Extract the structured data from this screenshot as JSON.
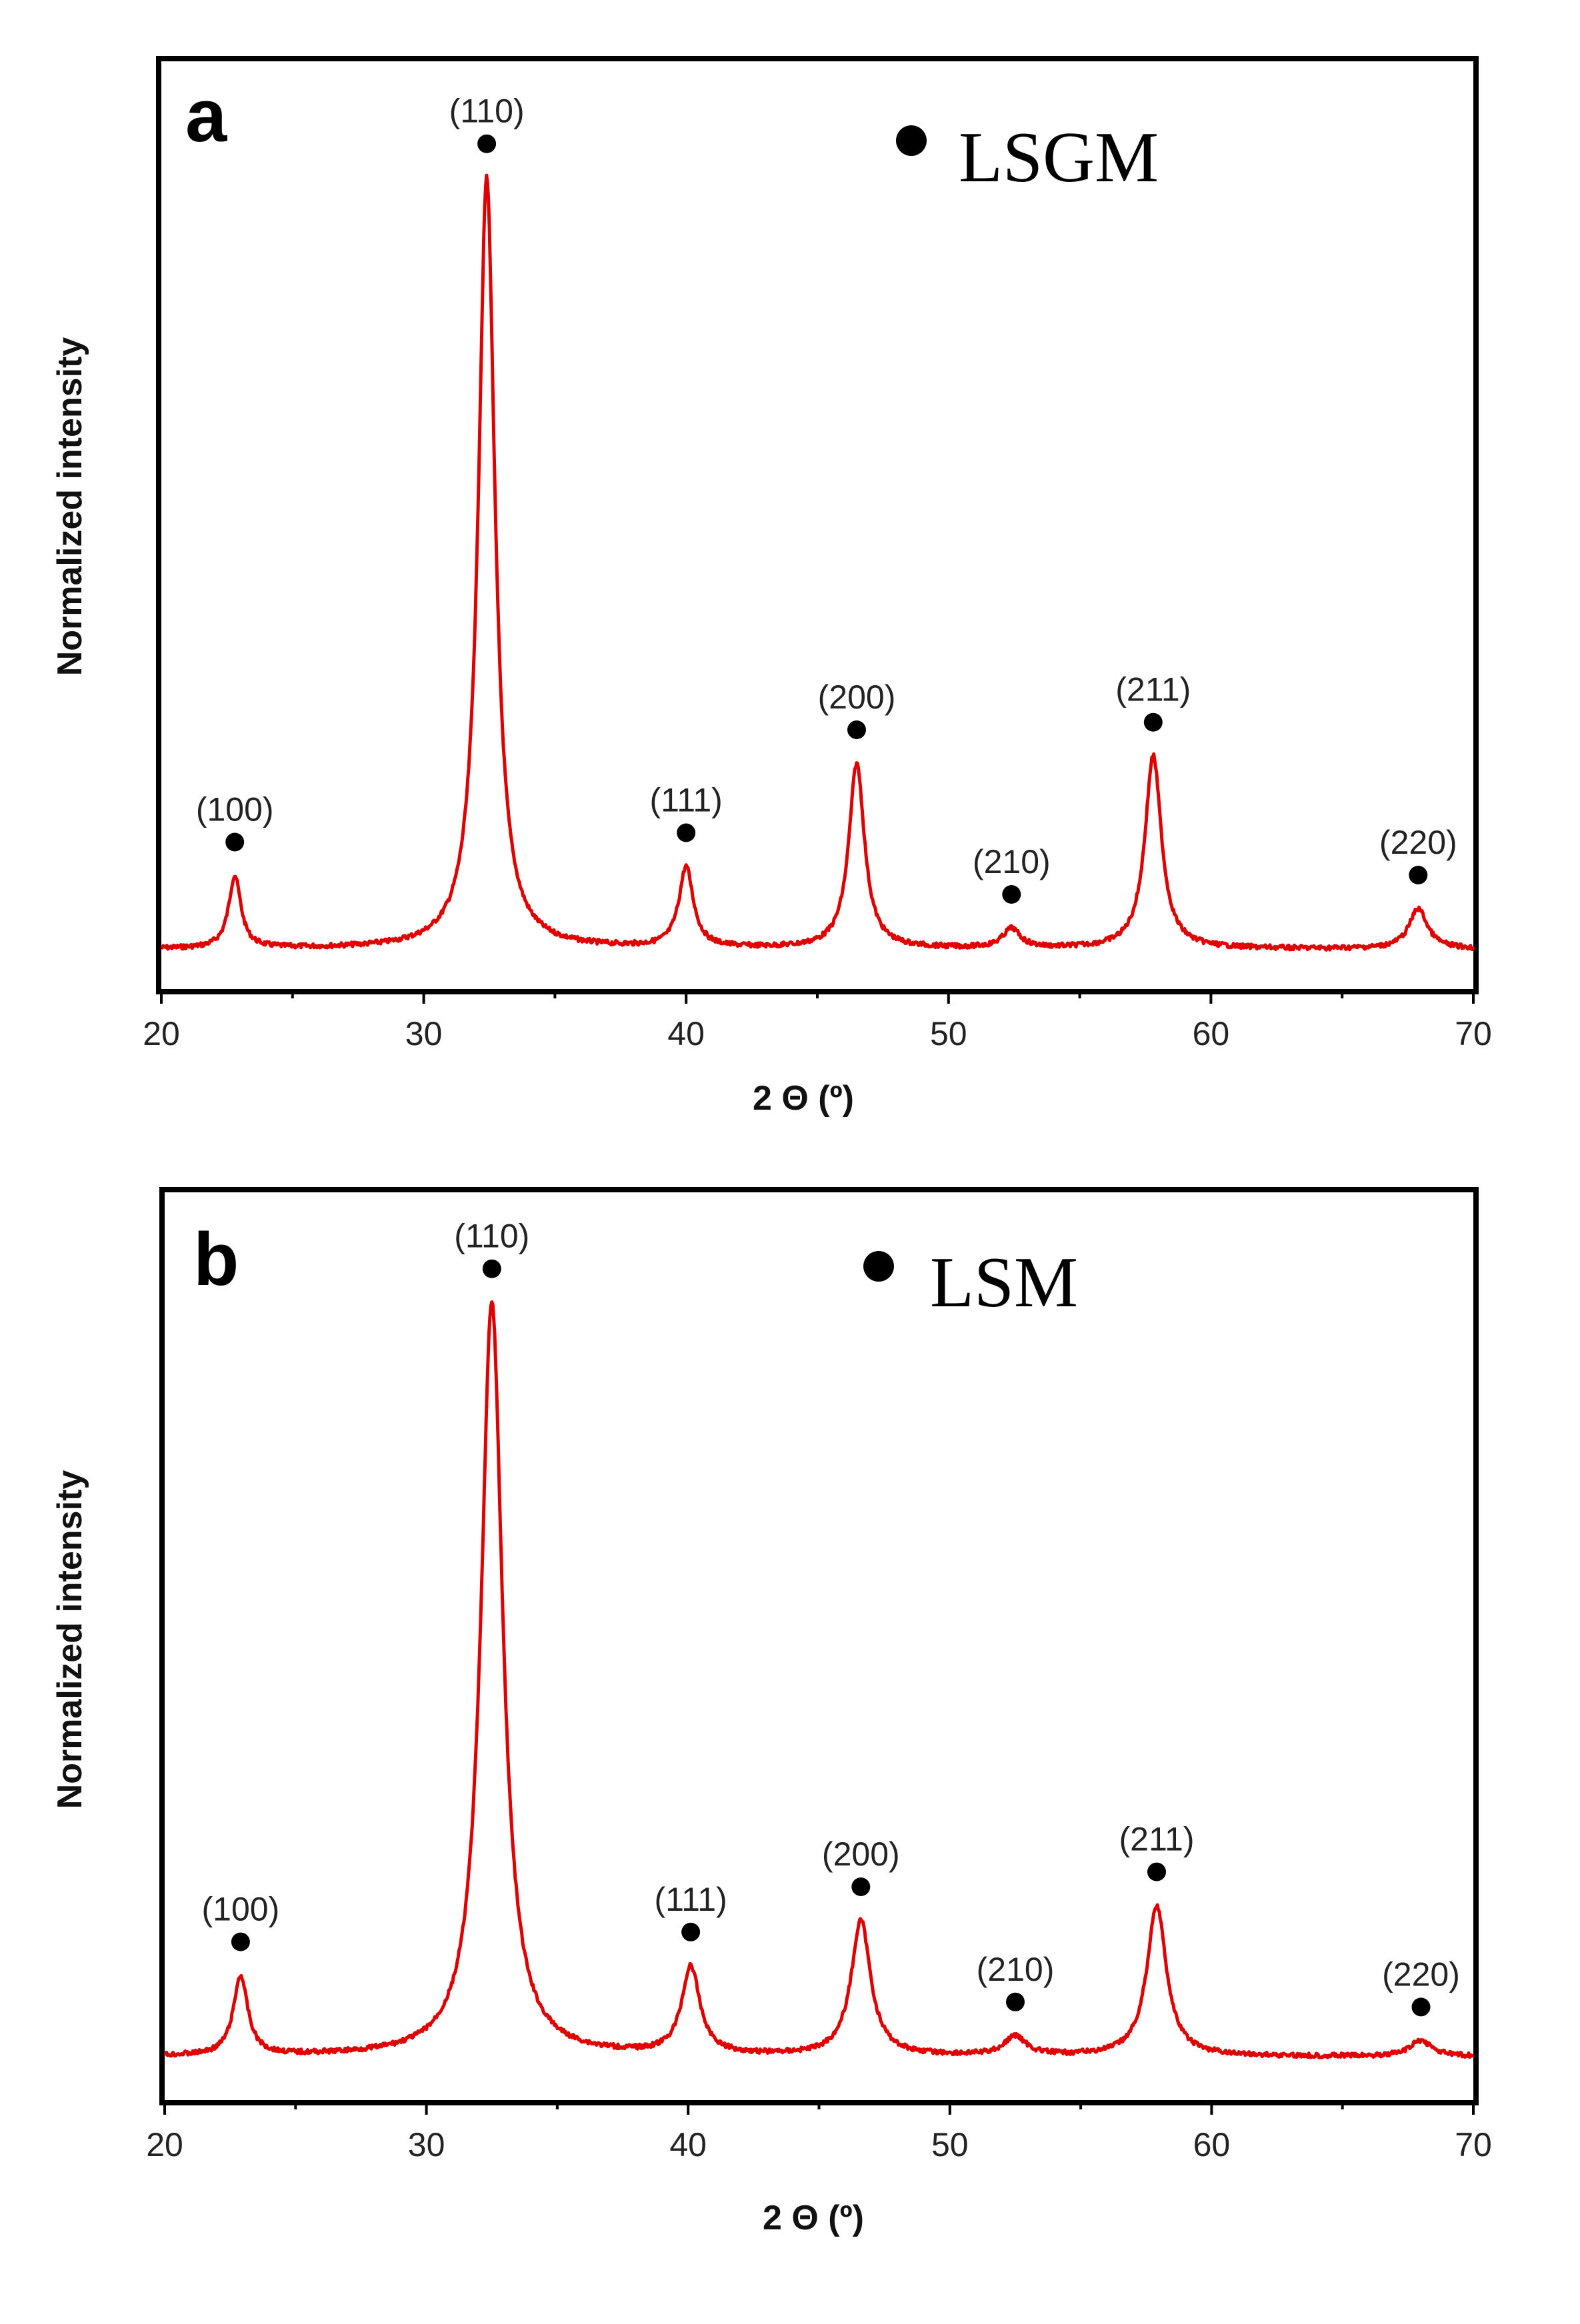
{
  "colors": {
    "line": "#e00000",
    "marker": "#000000",
    "frame": "#000000"
  },
  "chart_data": [
    {
      "type": "line",
      "panel_label": "a",
      "legend": "LSGM",
      "xlabel": "2 Θ (º)",
      "ylabel": "Normalized intensity",
      "xlim": [
        20,
        70
      ],
      "ylim": [
        0,
        1.05
      ],
      "xticks": [
        "20",
        "30",
        "40",
        "50",
        "60",
        "70"
      ],
      "baseline": 0.04,
      "peaks": [
        {
          "label": "(100)",
          "x": 22.8,
          "y": 0.13,
          "w": 0.28
        },
        {
          "label": "(110)",
          "x": 32.4,
          "y": 1.0,
          "w": 0.38
        },
        {
          "label": "(111)",
          "x": 40.0,
          "y": 0.14,
          "w": 0.33
        },
        {
          "label": "(200)",
          "x": 46.5,
          "y": 0.27,
          "w": 0.36
        },
        {
          "label": "(210)",
          "x": 52.4,
          "y": 0.04,
          "w": 0.4
        },
        {
          "label": "(211)",
          "x": 57.8,
          "y": 0.28,
          "w": 0.38
        },
        {
          "label": "(220)",
          "x": 67.9,
          "y": 0.09,
          "w": 0.42
        }
      ]
    },
    {
      "type": "line",
      "panel_label": "b",
      "legend": "LSM",
      "xlabel": "2 Θ (º)",
      "ylabel": "Normalized intensity",
      "xlim": [
        20,
        70
      ],
      "ylim": [
        0,
        1.05
      ],
      "xticks": [
        "20",
        "30",
        "40",
        "50",
        "60",
        "70"
      ],
      "baseline": 0.05,
      "peaks": [
        {
          "label": "(100)",
          "x": 22.9,
          "y": 0.15,
          "w": 0.33
        },
        {
          "label": "(110)",
          "x": 32.5,
          "y": 1.0,
          "w": 0.5
        },
        {
          "label": "(111)",
          "x": 40.1,
          "y": 0.16,
          "w": 0.42
        },
        {
          "label": "(200)",
          "x": 46.6,
          "y": 0.22,
          "w": 0.45
        },
        {
          "label": "(210)",
          "x": 52.5,
          "y": 0.04,
          "w": 0.5
        },
        {
          "label": "(211)",
          "x": 57.9,
          "y": 0.24,
          "w": 0.45
        },
        {
          "label": "(220)",
          "x": 68.0,
          "y": 0.07,
          "w": 0.5
        }
      ]
    }
  ]
}
